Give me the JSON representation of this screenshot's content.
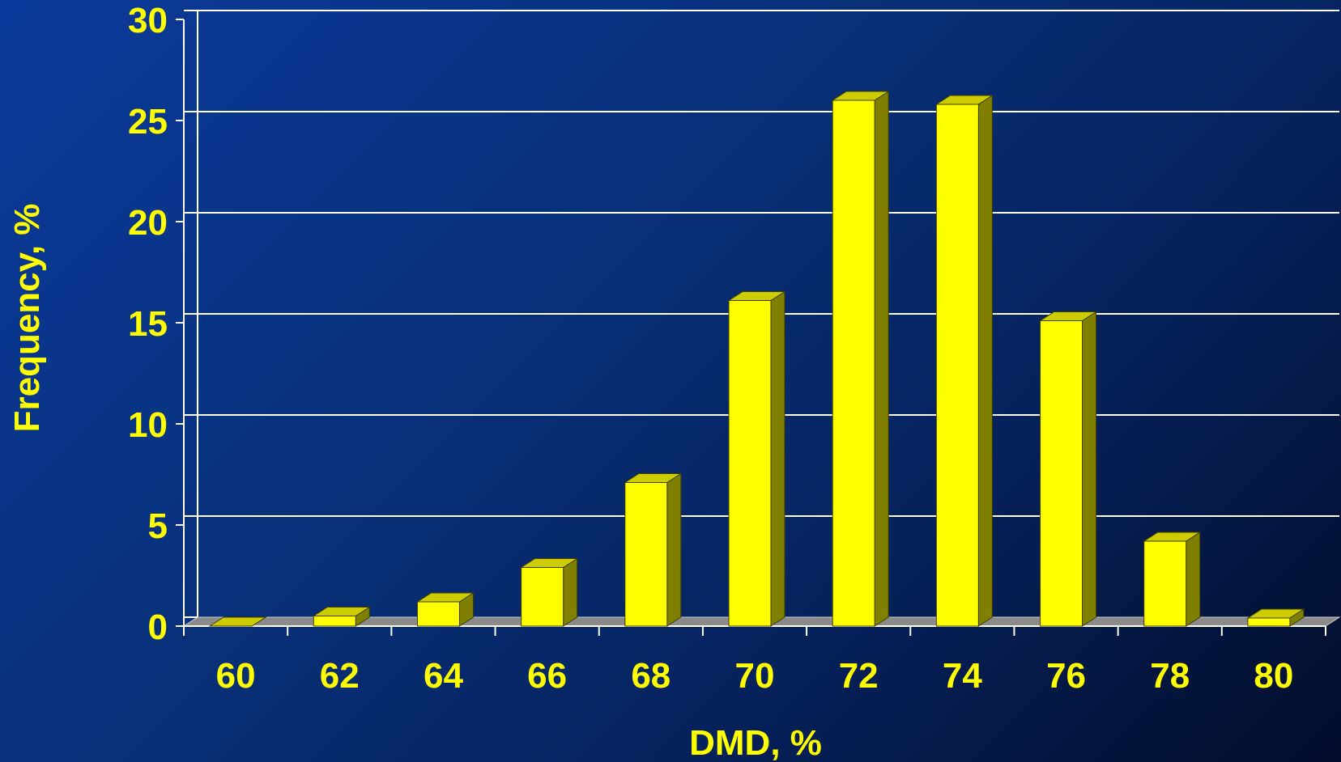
{
  "colors": {
    "bar_front": "#ffff00",
    "bar_top": "#cccc00",
    "bar_side": "#808000",
    "text": "#ffff00",
    "grid": "#ffffff",
    "floor": "#8a8a8a"
  },
  "chart_data": {
    "type": "bar",
    "style": "3d-column",
    "categories": [
      "60",
      "62",
      "64",
      "66",
      "68",
      "70",
      "72",
      "74",
      "76",
      "78",
      "80"
    ],
    "values": [
      0,
      0.5,
      1.2,
      2.9,
      7.1,
      16.1,
      26.0,
      25.8,
      15.1,
      4.2,
      0.4
    ],
    "xlabel": "DMD, %",
    "ylabel": "Frequency, %",
    "ylim": [
      0,
      30
    ],
    "yticks": [
      "0",
      "5",
      "10",
      "15",
      "20",
      "25",
      "30"
    ],
    "grid": true
  }
}
